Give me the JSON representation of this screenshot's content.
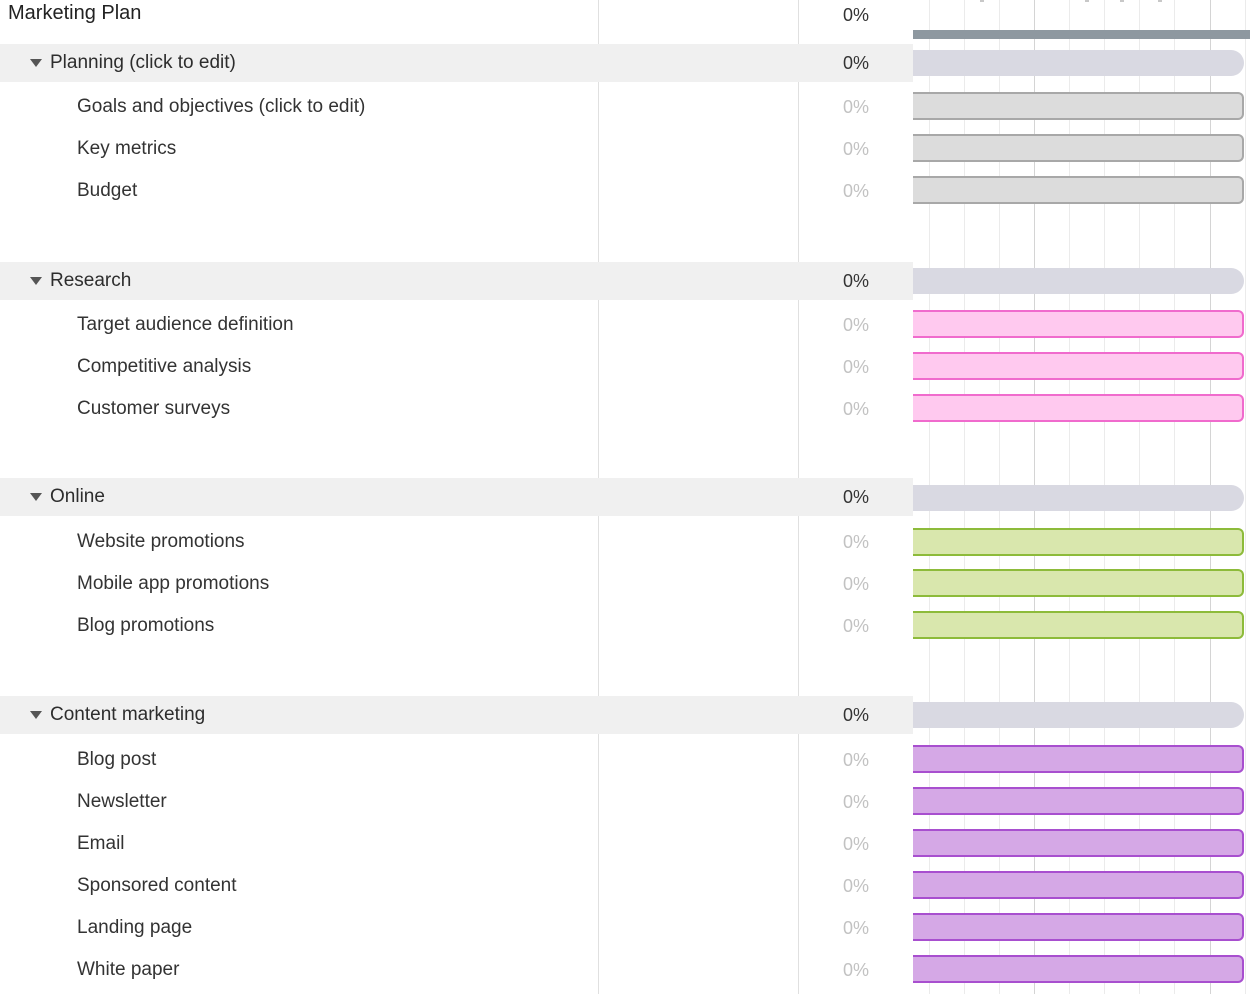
{
  "project": {
    "name": "Marketing Plan",
    "progress": "0%"
  },
  "groups": [
    {
      "id": "planning",
      "name": "Planning (click to edit)",
      "progress": "0%",
      "bar_color": "#dcdcdc",
      "tasks": [
        {
          "name": "Goals and objectives (click to edit)",
          "progress": "0%"
        },
        {
          "name": "Key metrics",
          "progress": "0%"
        },
        {
          "name": "Budget",
          "progress": "0%"
        }
      ]
    },
    {
      "id": "research",
      "name": "Research",
      "progress": "0%",
      "bar_color": "#ffc9ef",
      "tasks": [
        {
          "name": "Target audience definition",
          "progress": "0%"
        },
        {
          "name": "Competitive analysis",
          "progress": "0%"
        },
        {
          "name": "Customer surveys",
          "progress": "0%"
        }
      ]
    },
    {
      "id": "online",
      "name": "Online",
      "progress": "0%",
      "bar_color": "#d9e7ad",
      "tasks": [
        {
          "name": "Website promotions",
          "progress": "0%"
        },
        {
          "name": "Mobile app promotions",
          "progress": "0%"
        },
        {
          "name": "Blog promotions",
          "progress": "0%"
        }
      ]
    },
    {
      "id": "content",
      "name": "Content marketing",
      "progress": "0%",
      "bar_color": "#d5a8e6",
      "tasks": [
        {
          "name": "Blog post",
          "progress": "0%"
        },
        {
          "name": "Newsletter",
          "progress": "0%"
        },
        {
          "name": "Email",
          "progress": "0%"
        },
        {
          "name": "Sponsored content",
          "progress": "0%"
        },
        {
          "name": "Landing page",
          "progress": "0%"
        },
        {
          "name": "White paper",
          "progress": "0%"
        }
      ]
    }
  ],
  "icons": {
    "group_toggle": "caret-down-icon"
  }
}
